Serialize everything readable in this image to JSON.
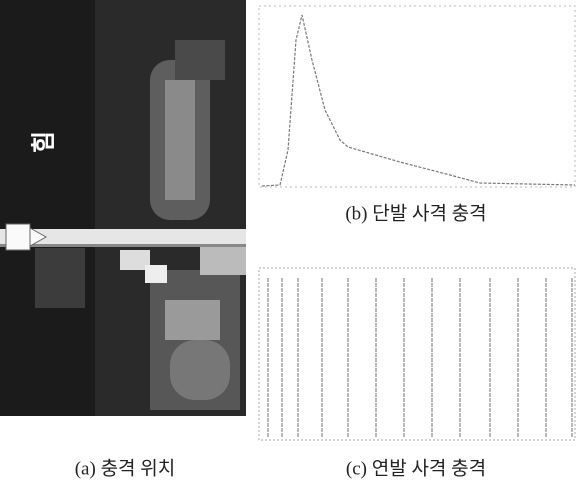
{
  "figure": {
    "panels": [
      {
        "label": "(a) 충격 위치",
        "annotation": "힘"
      },
      {
        "label": "(b) 단발 사격 충격"
      },
      {
        "label": "(c) 연발 사격 충격"
      }
    ]
  }
}
